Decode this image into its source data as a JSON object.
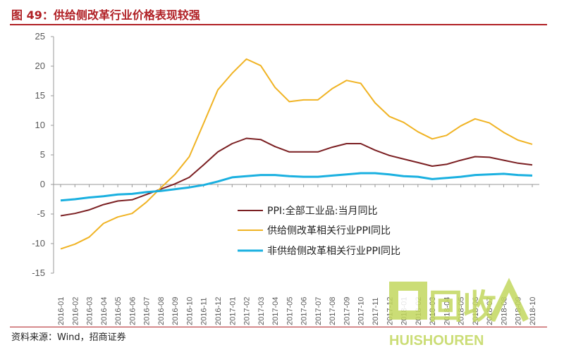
{
  "header": {
    "title": "图 49：供给侧改革行业价格表现较强"
  },
  "footer": {
    "source": "资料来源：Wind，招商证券"
  },
  "watermark": {
    "main": "回收",
    "sub": "HUISHOUREN"
  },
  "chart_data": {
    "type": "line",
    "title": "图 49：供给侧改革行业价格表现较强",
    "xlabel": "",
    "ylabel": "",
    "ylim": [
      -15,
      25
    ],
    "yticks": [
      -15,
      -10,
      -5,
      0,
      5,
      10,
      15,
      20,
      25
    ],
    "legend_position": "center-right",
    "categories": [
      "2016-01",
      "2016-02",
      "2016-03",
      "2016-04",
      "2016-05",
      "2016-06",
      "2016-07",
      "2016-08",
      "2016-09",
      "2016-10",
      "2016-11",
      "2016-12",
      "2017-01",
      "2017-02",
      "2017-03",
      "2017-04",
      "2017-05",
      "2017-06",
      "2017-07",
      "2017-08",
      "2017-09",
      "2017-10",
      "2017-11",
      "2017-12",
      "2018-01",
      "2018-02",
      "2018-03",
      "2018-04",
      "2018-05",
      "2018-06",
      "2018-07",
      "2018-08",
      "2018-09",
      "2018-10"
    ],
    "series": [
      {
        "name": "PPI:全部工业品:当月同比",
        "color": "#7b1f22",
        "values": [
          -5.3,
          -4.9,
          -4.3,
          -3.4,
          -2.8,
          -2.6,
          -1.7,
          -0.8,
          0.1,
          1.2,
          3.3,
          5.5,
          6.9,
          7.8,
          7.6,
          6.4,
          5.5,
          5.5,
          5.5,
          6.3,
          6.9,
          6.9,
          5.8,
          4.9,
          4.3,
          3.7,
          3.1,
          3.4,
          4.1,
          4.7,
          4.6,
          4.1,
          3.6,
          3.3
        ]
      },
      {
        "name": "供给侧改革相关行业PPI同比",
        "color": "#f0b323",
        "values": [
          -10.9,
          -10.1,
          -8.9,
          -6.6,
          -5.5,
          -4.9,
          -3.0,
          -0.6,
          1.7,
          4.7,
          10.3,
          16.0,
          18.8,
          21.2,
          20.1,
          16.4,
          14.0,
          14.3,
          14.3,
          16.2,
          17.6,
          17.1,
          13.8,
          11.5,
          10.5,
          8.9,
          7.7,
          8.3,
          9.9,
          11.1,
          10.4,
          8.8,
          7.5,
          6.8
        ]
      },
      {
        "name": "非供给侧改革相关行业PPI同比",
        "color": "#1ab0e0",
        "values": [
          -2.7,
          -2.5,
          -2.2,
          -2.0,
          -1.7,
          -1.6,
          -1.3,
          -1.1,
          -0.8,
          -0.5,
          -0.1,
          0.5,
          1.2,
          1.4,
          1.6,
          1.6,
          1.4,
          1.3,
          1.3,
          1.5,
          1.7,
          1.9,
          1.9,
          1.7,
          1.4,
          1.3,
          0.9,
          1.1,
          1.3,
          1.6,
          1.7,
          1.8,
          1.6,
          1.5
        ]
      }
    ]
  }
}
